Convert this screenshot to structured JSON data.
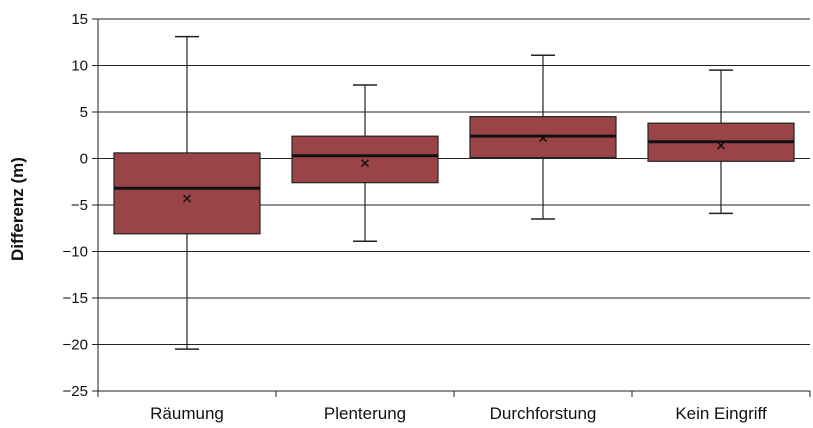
{
  "chart_data": {
    "type": "boxplot",
    "title": "",
    "xlabel": "",
    "ylabel": "Differenz (m)",
    "ylim": [
      -25,
      15
    ],
    "yticks": [
      15,
      10,
      5,
      0,
      -5,
      -10,
      -15,
      -20,
      -25
    ],
    "ytick_labels": [
      "15",
      "10",
      "5",
      "0",
      "−5",
      "−10",
      "−15",
      "−20",
      "−25"
    ],
    "grid": true,
    "box_color": "#9b4448",
    "categories": [
      "Räumung",
      "Plenterung",
      "Durchforstung",
      "Kein Eingriff"
    ],
    "boxes": [
      {
        "min": -20.5,
        "q1": -8.1,
        "median": -3.2,
        "q3": 0.6,
        "max": 13.1,
        "mean": -4.3
      },
      {
        "min": -8.9,
        "q1": -2.6,
        "median": 0.3,
        "q3": 2.4,
        "max": 7.9,
        "mean": -0.5
      },
      {
        "min": -6.5,
        "q1": 0.1,
        "median": 2.4,
        "q3": 4.5,
        "max": 11.1,
        "mean": 2.2
      },
      {
        "min": -5.9,
        "q1": -0.3,
        "median": 1.8,
        "q3": 3.8,
        "max": 9.5,
        "mean": 1.4
      }
    ]
  }
}
